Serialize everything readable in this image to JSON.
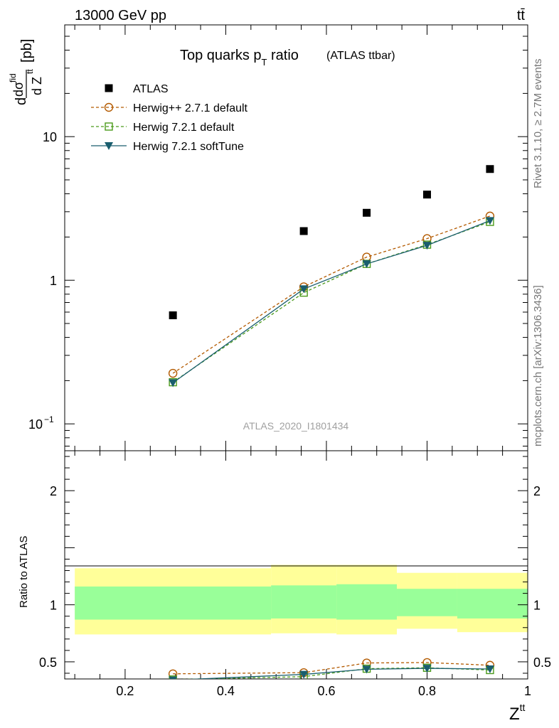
{
  "header": {
    "energy_label": "13000 GeV pp",
    "process_label": "tt̄"
  },
  "side_text": {
    "rivet": "Rivet 3.1.10, ≥ 2.7M events",
    "source": "mcplots.cern.ch [arXiv:1306.3436]"
  },
  "chart_data": [
    {
      "type": "line",
      "title": "Top quarks p",
      "title_sub": "T",
      "title_rest": " ratio",
      "title_note": "(ATLAS ttbar)",
      "ylabel": "dσ^fid / d Z^tt [pb]",
      "xlim": [
        0.08,
        1.0
      ],
      "ylim": [
        0.065,
        60
      ],
      "yscale": "log",
      "watermark": "ATLAS_2020_I1801434",
      "y_tick_labels": [
        "10",
        "1",
        "10"
      ],
      "y_tick_exponent": "−1",
      "legend_position": "top-left",
      "legend": [
        {
          "name": "ATLAS",
          "marker": "square-filled",
          "color": "#000000"
        },
        {
          "name": "Herwig++ 2.7.1 default",
          "marker": "circle-open",
          "color": "#b35a00"
        },
        {
          "name": "Herwig 7.2.1 default",
          "marker": "square-open",
          "color": "#4a9a1a"
        },
        {
          "name": "Herwig 7.2.1 softTune",
          "marker": "triangle-down-filled",
          "color": "#1a5e6e"
        }
      ],
      "x": [
        0.295,
        0.555,
        0.68,
        0.8,
        0.925
      ],
      "series": [
        {
          "name": "ATLAS",
          "values": [
            0.57,
            2.2,
            2.95,
            3.95,
            5.95
          ]
        },
        {
          "name": "Herwig++ 2.7.1 default",
          "values": [
            0.225,
            0.9,
            1.45,
            1.95,
            2.8
          ]
        },
        {
          "name": "Herwig 7.2.1 default",
          "values": [
            0.195,
            0.82,
            1.3,
            1.77,
            2.55
          ]
        },
        {
          "name": "Herwig 7.2.1 softTune",
          "values": [
            0.193,
            0.87,
            1.3,
            1.75,
            2.6
          ]
        }
      ]
    },
    {
      "type": "line",
      "ylabel": "Ratio to ATLAS",
      "xlabel": "Z",
      "xlabel_sup": "tt",
      "xlim": [
        0.08,
        1.0
      ],
      "ylim": [
        0.35,
        2.35
      ],
      "x_tick_labels": [
        "0.2",
        "0.4",
        "0.6",
        "0.8",
        "1"
      ],
      "y_tick_labels": [
        "0.5",
        "1",
        "2"
      ],
      "bands": [
        {
          "x": [
            0.1,
            0.49
          ],
          "stat": [
            0.87,
            1.16
          ],
          "total": [
            0.74,
            1.32
          ]
        },
        {
          "x": [
            0.49,
            0.62
          ],
          "stat": [
            0.88,
            1.17
          ],
          "total": [
            0.75,
            1.35
          ]
        },
        {
          "x": [
            0.62,
            0.74
          ],
          "stat": [
            0.87,
            1.18
          ],
          "total": [
            0.74,
            1.35
          ]
        },
        {
          "x": [
            0.74,
            0.86
          ],
          "stat": [
            0.9,
            1.14
          ],
          "total": [
            0.79,
            1.28
          ]
        },
        {
          "x": [
            0.86,
            1.0
          ],
          "stat": [
            0.88,
            1.14
          ],
          "total": [
            0.76,
            1.28
          ]
        }
      ],
      "x": [
        0.295,
        0.555,
        0.68,
        0.8,
        0.925
      ],
      "series": [
        {
          "name": "Herwig++ 2.7.1 default",
          "values": [
            0.395,
            0.405,
            0.49,
            0.494,
            0.47
          ]
        },
        {
          "name": "Herwig 7.2.1 default",
          "values": [
            0.345,
            0.37,
            0.44,
            0.448,
            0.428
          ]
        },
        {
          "name": "Herwig 7.2.1 softTune",
          "values": [
            0.34,
            0.39,
            0.435,
            0.443,
            0.437
          ]
        }
      ]
    }
  ]
}
